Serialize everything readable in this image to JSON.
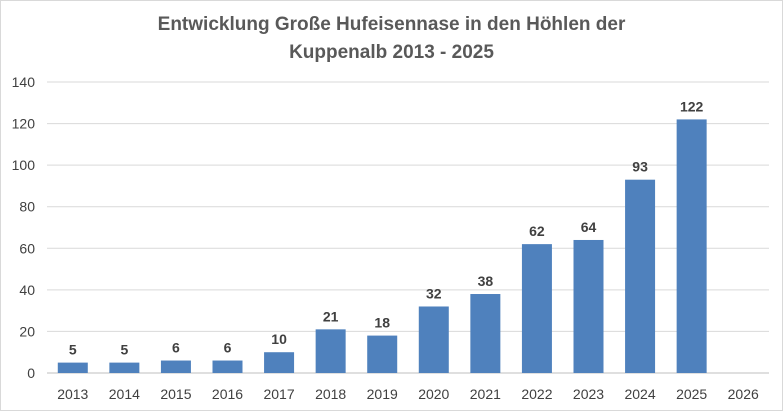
{
  "chart_data": {
    "type": "bar",
    "title_line1": "Entwicklung Große Hufeisennase in den Höhlen der",
    "title_line2": "Kuppenalb 2013 - 2025",
    "categories": [
      "2013",
      "2014",
      "2015",
      "2016",
      "2017",
      "2018",
      "2019",
      "2020",
      "2021",
      "2022",
      "2023",
      "2024",
      "2025",
      "2026"
    ],
    "values": [
      5,
      5,
      6,
      6,
      10,
      21,
      18,
      32,
      38,
      62,
      64,
      93,
      122,
      null
    ],
    "data_labels": [
      "5",
      "5",
      "6",
      "6",
      "10",
      "21",
      "18",
      "32",
      "38",
      "62",
      "64",
      "93",
      "122",
      ""
    ],
    "yticks": [
      "0",
      "20",
      "40",
      "60",
      "80",
      "100",
      "120",
      "140"
    ],
    "ylim": [
      0,
      140
    ],
    "grid": true,
    "legend": "none",
    "bar_color": "#4f81bd"
  }
}
